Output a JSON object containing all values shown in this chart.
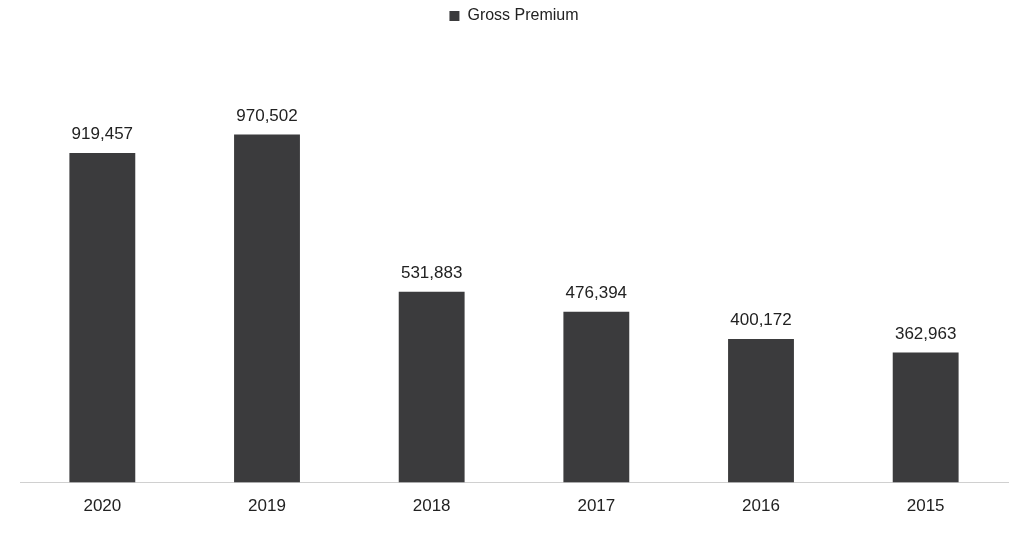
{
  "chart_data": {
    "type": "bar",
    "categories": [
      "2020",
      "2019",
      "2018",
      "2017",
      "2016",
      "2015"
    ],
    "series": [
      {
        "name": "Gross Premium",
        "color": "#3b3b3d",
        "values": [
          919457,
          970502,
          531883,
          476394,
          400172,
          362963
        ],
        "value_labels": [
          "919,457",
          "970,502",
          "531,883",
          "476,394",
          "400,172",
          "362,963"
        ]
      }
    ],
    "legend": "top",
    "grid": false
  }
}
